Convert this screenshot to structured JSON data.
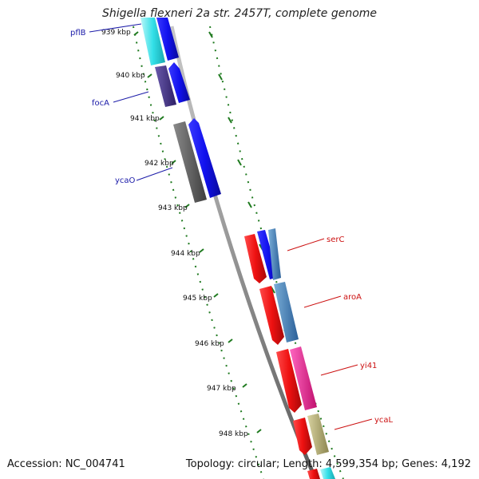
{
  "title": "Shigella flexneri 2a str. 2457T, complete genome",
  "footer": {
    "accession": "Accession: NC_004741",
    "stats": "Topology: circular; Length: 4,599,354 bp; Genes: 4,192"
  },
  "scale_labels": [
    "939 kbp",
    "940 kbp",
    "941 kbp",
    "942 kbp",
    "943 kbp",
    "944 kbp",
    "945 kbp",
    "946 kbp",
    "947 kbp",
    "948 kbp"
  ],
  "gene_labels": {
    "left": [
      {
        "name": "pflB",
        "color": "#1a1aa8"
      },
      {
        "name": "focA",
        "color": "#1a1aa8"
      },
      {
        "name": "ycaO",
        "color": "#1a1aa8"
      }
    ],
    "right": [
      {
        "name": "serC",
        "color": "#cc1111"
      },
      {
        "name": "aroA",
        "color": "#cc1111"
      },
      {
        "name": "yi41",
        "color": "#cc1111"
      },
      {
        "name": "ycaL",
        "color": "#cc1111"
      }
    ]
  },
  "colors": {
    "backbone": "#8c8c8c",
    "tick": "#1f7a1f",
    "cyan": "#33e0e8",
    "blue": "#1111ee",
    "purple": "#4a3a8c",
    "gray": "#6a6a6a",
    "red": "#ee1111",
    "steelblue": "#4a86c0",
    "pink": "#ff2299",
    "khaki": "#b8b27a"
  }
}
